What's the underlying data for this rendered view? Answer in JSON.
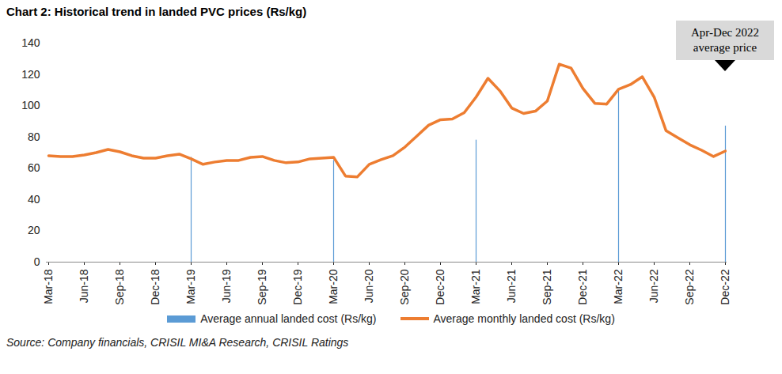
{
  "chart_data": {
    "type": "line",
    "title": "Chart 2: Historical trend in landed PVC prices (Rs/kg)",
    "source": "Source: Company financials, CRISIL MI&A Research, CRISIL Ratings",
    "categories": [
      "Mar-18",
      null,
      null,
      "Jun-18",
      null,
      null,
      "Sep-18",
      null,
      null,
      "Dec-18",
      null,
      null,
      "Mar-19",
      null,
      null,
      "Jun-19",
      null,
      null,
      "Sep-19",
      null,
      null,
      "Dec-19",
      null,
      null,
      "Mar-20",
      null,
      null,
      "Jun-20",
      null,
      null,
      "Sep-20",
      null,
      null,
      "Dec-20",
      null,
      null,
      "Mar-21",
      null,
      null,
      "Jun-21",
      null,
      null,
      "Sep-21",
      null,
      null,
      "Dec-21",
      null,
      null,
      "Mar-22",
      null,
      null,
      "Jun-22",
      null,
      null,
      "Sep-22",
      null,
      null,
      "Dec-22"
    ],
    "series": [
      {
        "name": "Average annual landed cost (Rs/kg)",
        "type": "bar",
        "color": "#5B9BD5",
        "values": [
          null,
          null,
          null,
          null,
          null,
          null,
          null,
          null,
          null,
          null,
          null,
          null,
          67,
          null,
          null,
          null,
          null,
          null,
          null,
          null,
          null,
          null,
          null,
          null,
          65,
          null,
          null,
          null,
          null,
          null,
          null,
          null,
          null,
          null,
          null,
          null,
          78,
          null,
          null,
          null,
          null,
          null,
          null,
          null,
          null,
          null,
          null,
          null,
          110,
          null,
          null,
          null,
          null,
          null,
          null,
          null,
          null,
          87
        ]
      },
      {
        "name": "Average monthly landed cost (Rs/kg)",
        "type": "line",
        "color": "#ED7D31",
        "values": [
          68,
          67.5,
          67.5,
          68.5,
          70,
          72,
          70.5,
          68,
          66.5,
          66.5,
          68,
          69,
          66,
          62.5,
          64,
          65,
          65,
          67,
          67.5,
          65,
          63.5,
          64,
          66,
          66.5,
          67,
          55,
          54.5,
          62.5,
          65.5,
          68,
          73.5,
          80.5,
          87.5,
          91,
          91.5,
          95.5,
          105.5,
          117.5,
          109.5,
          98.5,
          95,
          96.5,
          103,
          126.5,
          124,
          111,
          101.5,
          101,
          110.5,
          113.5,
          118.5,
          105.5,
          84,
          79.5,
          75,
          71.5,
          67.5,
          71
        ]
      }
    ],
    "ylim": [
      0,
      140
    ],
    "yticks": [
      0,
      20,
      40,
      60,
      80,
      100,
      120,
      140
    ],
    "grid": false,
    "legend": "bottom",
    "annotations": [
      {
        "text": "Apr-Dec 2022 average price",
        "x": "Dec-22"
      }
    ]
  }
}
